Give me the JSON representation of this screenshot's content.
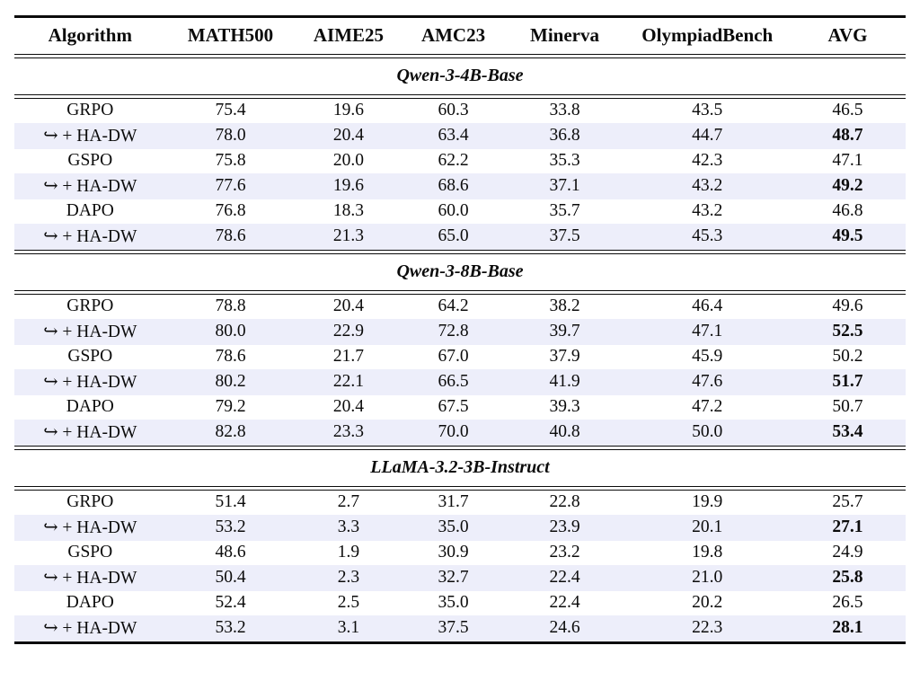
{
  "table": {
    "stripe_color": "#edeefa",
    "arrow_icon": "hookrightarrow",
    "columns": [
      {
        "key": "algorithm",
        "label": "Algorithm"
      },
      {
        "key": "math500",
        "label": "MATH500"
      },
      {
        "key": "aime25",
        "label": "AIME25"
      },
      {
        "key": "amc23",
        "label": "AMC23"
      },
      {
        "key": "minerva",
        "label": "Minerva"
      },
      {
        "key": "olympiadbench",
        "label": "OlympiadBench"
      },
      {
        "key": "avg",
        "label": "AVG"
      }
    ],
    "sections": [
      {
        "title": "Qwen-3-4B-Base",
        "rows": [
          {
            "algorithm": "GRPO",
            "values": [
              "75.4",
              "19.6",
              "60.3",
              "33.8",
              "43.5",
              "46.5"
            ],
            "highlight": false,
            "bold_avg": false
          },
          {
            "algorithm": "↪ + HA-DW",
            "values": [
              "78.0",
              "20.4",
              "63.4",
              "36.8",
              "44.7",
              "48.7"
            ],
            "highlight": true,
            "bold_avg": true
          },
          {
            "algorithm": "GSPO",
            "values": [
              "75.8",
              "20.0",
              "62.2",
              "35.3",
              "42.3",
              "47.1"
            ],
            "highlight": false,
            "bold_avg": false
          },
          {
            "algorithm": "↪ + HA-DW",
            "values": [
              "77.6",
              "19.6",
              "68.6",
              "37.1",
              "43.2",
              "49.2"
            ],
            "highlight": true,
            "bold_avg": true
          },
          {
            "algorithm": "DAPO",
            "values": [
              "76.8",
              "18.3",
              "60.0",
              "35.7",
              "43.2",
              "46.8"
            ],
            "highlight": false,
            "bold_avg": false
          },
          {
            "algorithm": "↪ + HA-DW",
            "values": [
              "78.6",
              "21.3",
              "65.0",
              "37.5",
              "45.3",
              "49.5"
            ],
            "highlight": true,
            "bold_avg": true
          }
        ]
      },
      {
        "title": "Qwen-3-8B-Base",
        "rows": [
          {
            "algorithm": "GRPO",
            "values": [
              "78.8",
              "20.4",
              "64.2",
              "38.2",
              "46.4",
              "49.6"
            ],
            "highlight": false,
            "bold_avg": false
          },
          {
            "algorithm": "↪ + HA-DW",
            "values": [
              "80.0",
              "22.9",
              "72.8",
              "39.7",
              "47.1",
              "52.5"
            ],
            "highlight": true,
            "bold_avg": true
          },
          {
            "algorithm": "GSPO",
            "values": [
              "78.6",
              "21.7",
              "67.0",
              "37.9",
              "45.9",
              "50.2"
            ],
            "highlight": false,
            "bold_avg": false
          },
          {
            "algorithm": "↪ + HA-DW",
            "values": [
              "80.2",
              "22.1",
              "66.5",
              "41.9",
              "47.6",
              "51.7"
            ],
            "highlight": true,
            "bold_avg": true
          },
          {
            "algorithm": "DAPO",
            "values": [
              "79.2",
              "20.4",
              "67.5",
              "39.3",
              "47.2",
              "50.7"
            ],
            "highlight": false,
            "bold_avg": false
          },
          {
            "algorithm": "↪ + HA-DW",
            "values": [
              "82.8",
              "23.3",
              "70.0",
              "40.8",
              "50.0",
              "53.4"
            ],
            "highlight": true,
            "bold_avg": true
          }
        ]
      },
      {
        "title": "LLaMA-3.2-3B-Instruct",
        "rows": [
          {
            "algorithm": "GRPO",
            "values": [
              "51.4",
              "2.7",
              "31.7",
              "22.8",
              "19.9",
              "25.7"
            ],
            "highlight": false,
            "bold_avg": false
          },
          {
            "algorithm": "↪ + HA-DW",
            "values": [
              "53.2",
              "3.3",
              "35.0",
              "23.9",
              "20.1",
              "27.1"
            ],
            "highlight": true,
            "bold_avg": true
          },
          {
            "algorithm": "GSPO",
            "values": [
              "48.6",
              "1.9",
              "30.9",
              "23.2",
              "19.8",
              "24.9"
            ],
            "highlight": false,
            "bold_avg": false
          },
          {
            "algorithm": "↪ + HA-DW",
            "values": [
              "50.4",
              "2.3",
              "32.7",
              "22.4",
              "21.0",
              "25.8"
            ],
            "highlight": true,
            "bold_avg": true
          },
          {
            "algorithm": "DAPO",
            "values": [
              "52.4",
              "2.5",
              "35.0",
              "22.4",
              "20.2",
              "26.5"
            ],
            "highlight": false,
            "bold_avg": false
          },
          {
            "algorithm": "↪ + HA-DW",
            "values": [
              "53.2",
              "3.1",
              "37.5",
              "24.6",
              "22.3",
              "28.1"
            ],
            "highlight": true,
            "bold_avg": true
          }
        ]
      }
    ]
  }
}
